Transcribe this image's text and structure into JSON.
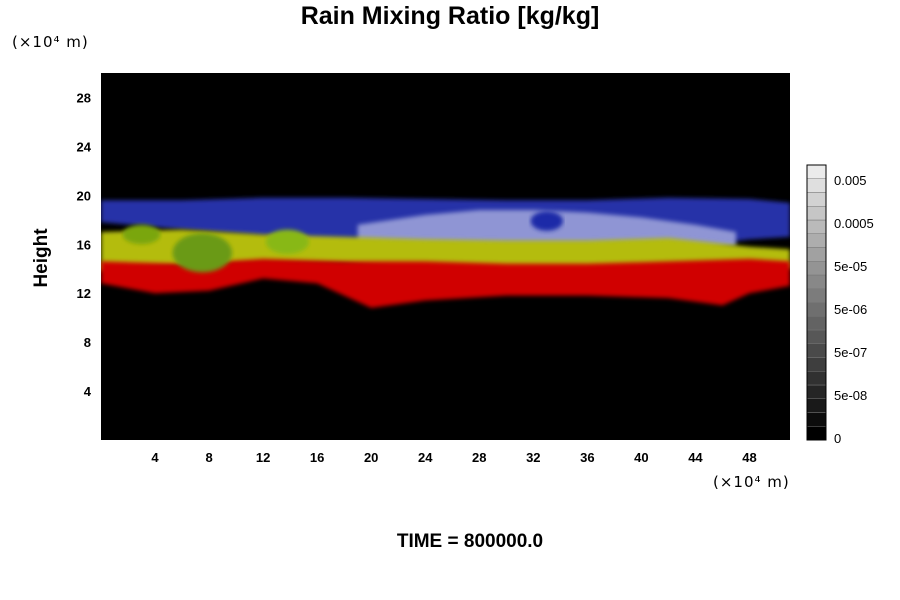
{
  "chart_data": {
    "type": "heatmap",
    "title": "Rain Mixing Ratio [kg/kg]",
    "ylabel": "Height",
    "xlabel": "",
    "x_unit": "(×10⁴ m)",
    "y_unit": "(×10⁴ m)",
    "footer": "TIME = 800000.0",
    "xlim": [
      0,
      51
    ],
    "ylim": [
      0,
      30
    ],
    "x_ticks": [
      4,
      8,
      12,
      16,
      20,
      24,
      28,
      32,
      36,
      40,
      44,
      48
    ],
    "y_ticks": [
      4,
      8,
      12,
      16,
      20,
      24,
      28
    ],
    "colorbar": {
      "labels": [
        "0",
        "5e-08",
        "5e-07",
        "5e-06",
        "5e-05",
        "0.0005",
        "0.005"
      ],
      "levels": 20
    },
    "colors": {
      "background": "#000000",
      "low_band": "#d40000",
      "mid_band": "#b8c000",
      "upper_band": "#8890d8",
      "top_band": "#2030b0"
    },
    "layers": [
      {
        "name": "upper band",
        "color": "#2630a8",
        "top": [
          [
            0,
            19.6
          ],
          [
            6,
            19.6
          ],
          [
            12,
            19.8
          ],
          [
            18,
            19.8
          ],
          [
            24,
            19.7
          ],
          [
            30,
            19.6
          ],
          [
            36,
            19.6
          ],
          [
            42,
            19.8
          ],
          [
            48,
            19.7
          ],
          [
            51,
            19.4
          ]
        ],
        "bottom": [
          [
            0,
            17.8
          ],
          [
            6,
            17.2
          ],
          [
            12,
            16.6
          ],
          [
            18,
            15.8
          ],
          [
            24,
            15.2
          ],
          [
            30,
            15.0
          ],
          [
            36,
            15.0
          ],
          [
            42,
            15.6
          ],
          [
            48,
            16.4
          ],
          [
            51,
            16.6
          ]
        ]
      },
      {
        "name": "lavender band",
        "color": "#8f95d4",
        "top": [
          [
            19,
            17.6
          ],
          [
            24,
            18.4
          ],
          [
            28,
            18.8
          ],
          [
            32,
            18.8
          ],
          [
            36,
            18.6
          ],
          [
            40,
            18.2
          ],
          [
            44,
            17.6
          ],
          [
            47,
            17.0
          ]
        ],
        "bottom": [
          [
            19,
            15.6
          ],
          [
            24,
            15.4
          ],
          [
            28,
            15.4
          ],
          [
            32,
            15.4
          ],
          [
            36,
            15.4
          ],
          [
            40,
            15.4
          ],
          [
            44,
            15.6
          ],
          [
            47,
            15.8
          ]
        ]
      },
      {
        "name": "yellow band",
        "color": "#b4bc08",
        "top": [
          [
            0,
            17.0
          ],
          [
            6,
            17.2
          ],
          [
            12,
            16.8
          ],
          [
            18,
            16.6
          ],
          [
            24,
            16.4
          ],
          [
            30,
            16.3
          ],
          [
            36,
            16.3
          ],
          [
            42,
            16.5
          ],
          [
            48,
            15.8
          ],
          [
            51,
            15.6
          ]
        ],
        "bottom": [
          [
            0,
            13.8
          ],
          [
            6,
            14.2
          ],
          [
            12,
            14.4
          ],
          [
            18,
            14.4
          ],
          [
            24,
            13.8
          ],
          [
            30,
            13.6
          ],
          [
            36,
            13.6
          ],
          [
            42,
            13.8
          ],
          [
            48,
            14.0
          ],
          [
            51,
            14.0
          ]
        ]
      },
      {
        "name": "red band",
        "color": "#d00404",
        "top": [
          [
            0,
            14.6
          ],
          [
            6,
            14.4
          ],
          [
            12,
            14.8
          ],
          [
            18,
            14.6
          ],
          [
            24,
            14.6
          ],
          [
            30,
            14.4
          ],
          [
            36,
            14.4
          ],
          [
            42,
            14.6
          ],
          [
            48,
            14.8
          ],
          [
            51,
            14.6
          ]
        ],
        "bottom": [
          [
            0,
            12.8
          ],
          [
            4,
            12.0
          ],
          [
            8,
            12.2
          ],
          [
            12,
            13.2
          ],
          [
            16,
            12.8
          ],
          [
            20,
            10.8
          ],
          [
            24,
            11.4
          ],
          [
            30,
            11.8
          ],
          [
            36,
            11.8
          ],
          [
            42,
            11.6
          ],
          [
            46,
            11.0
          ],
          [
            48,
            12.0
          ],
          [
            51,
            12.6
          ]
        ]
      }
    ],
    "features": [
      {
        "name": "blue bubble",
        "color": "#1c2aa8",
        "x": 33.0,
        "y": 17.9,
        "rx": 1.2,
        "ry": 0.8
      },
      {
        "name": "green cell 1",
        "color": "#6a9a14",
        "x": 7.5,
        "y": 15.3,
        "rx": 2.2,
        "ry": 1.6
      },
      {
        "name": "green cell 2",
        "color": "#88b818",
        "x": 13.8,
        "y": 16.2,
        "rx": 1.6,
        "ry": 1.0
      },
      {
        "name": "green cell 3",
        "color": "#7aa610",
        "x": 3.0,
        "y": 16.8,
        "rx": 1.4,
        "ry": 0.8
      }
    ]
  }
}
